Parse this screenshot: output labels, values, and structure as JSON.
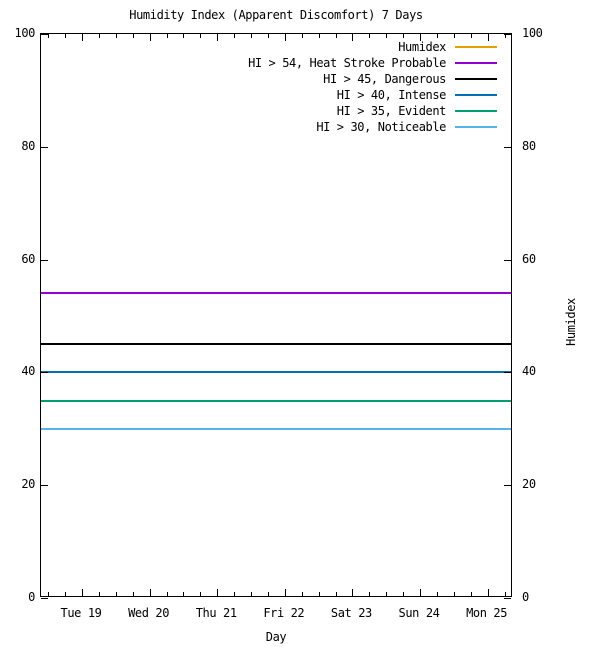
{
  "chart_data": {
    "type": "line",
    "title": "Humidity Index (Apparent Discomfort) 7 Days",
    "xlabel": "Day",
    "y2label": "Humidex",
    "x_tick_labels": [
      "Tue 19",
      "Wed 20",
      "Thu 21",
      "Fri 22",
      "Sat 23",
      "Sun 24",
      "Mon 25"
    ],
    "x_minor_ticks_per_day": 4,
    "y_ticks": [
      0,
      20,
      40,
      60,
      80,
      100
    ],
    "ylim": [
      0,
      100
    ],
    "grid": false,
    "legend_position": "top-right-inside",
    "series": [
      {
        "label": "Humidex",
        "color": "#E69F00",
        "kind": "data",
        "y": null
      },
      {
        "label": "HI > 54, Heat Stroke Probable",
        "color": "#9400D3",
        "kind": "hline",
        "y": 54
      },
      {
        "label": "HI > 45, Dangerous",
        "color": "#000000",
        "kind": "hline",
        "y": 45
      },
      {
        "label": "HI > 40, Intense",
        "color": "#0072B2",
        "kind": "hline",
        "y": 40
      },
      {
        "label": "HI > 35, Evident",
        "color": "#009E73",
        "kind": "hline",
        "y": 35
      },
      {
        "label": "HI > 30, Noticeable",
        "color": "#56B4E9",
        "kind": "hline",
        "y": 30
      }
    ]
  }
}
